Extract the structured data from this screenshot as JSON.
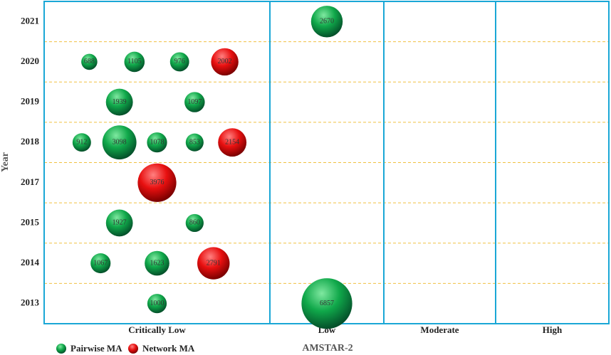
{
  "chart_data": {
    "type": "bubble",
    "x_label": "AMSTAR-2",
    "y_label": "Year",
    "categories": [
      "Critically Low",
      "Low",
      "Moderate",
      "High"
    ],
    "years": [
      "2021",
      "2020",
      "2019",
      "2018",
      "2017",
      "2015",
      "2014",
      "2013"
    ],
    "series": [
      {
        "name": "Pairwise MA",
        "color": "#10a84a",
        "x": [
          "Low",
          "Critically Low",
          "Critically Low",
          "Critically Low",
          "Critically Low",
          "Critically Low",
          "Critically Low",
          "Critically Low",
          "Critically Low",
          "Critically Low",
          "Critically Low",
          "Critically Low",
          "Critically Low",
          "Critically Low",
          "Critically Low",
          "Low"
        ],
        "y": [
          "2021",
          "2020",
          "2020",
          "2020",
          "2019",
          "2019",
          "2018",
          "2018",
          "2018",
          "2018",
          "2015",
          "2015",
          "2014",
          "2014",
          "2013",
          "2013"
        ],
        "values": [
          2670,
          688,
          1105,
          976,
          1939,
          1097,
          912,
          3098,
          1078,
          853,
          1927,
          860,
          1067,
          1623,
          1000,
          6857
        ]
      },
      {
        "name": "Network MA",
        "color": "#e81010",
        "x": [
          "Critically Low",
          "Critically Low",
          "Critically Low",
          "Critically Low"
        ],
        "y": [
          "2020",
          "2018",
          "2017",
          "2014"
        ],
        "values": [
          2002,
          2154,
          3976,
          2791
        ]
      }
    ]
  }
}
